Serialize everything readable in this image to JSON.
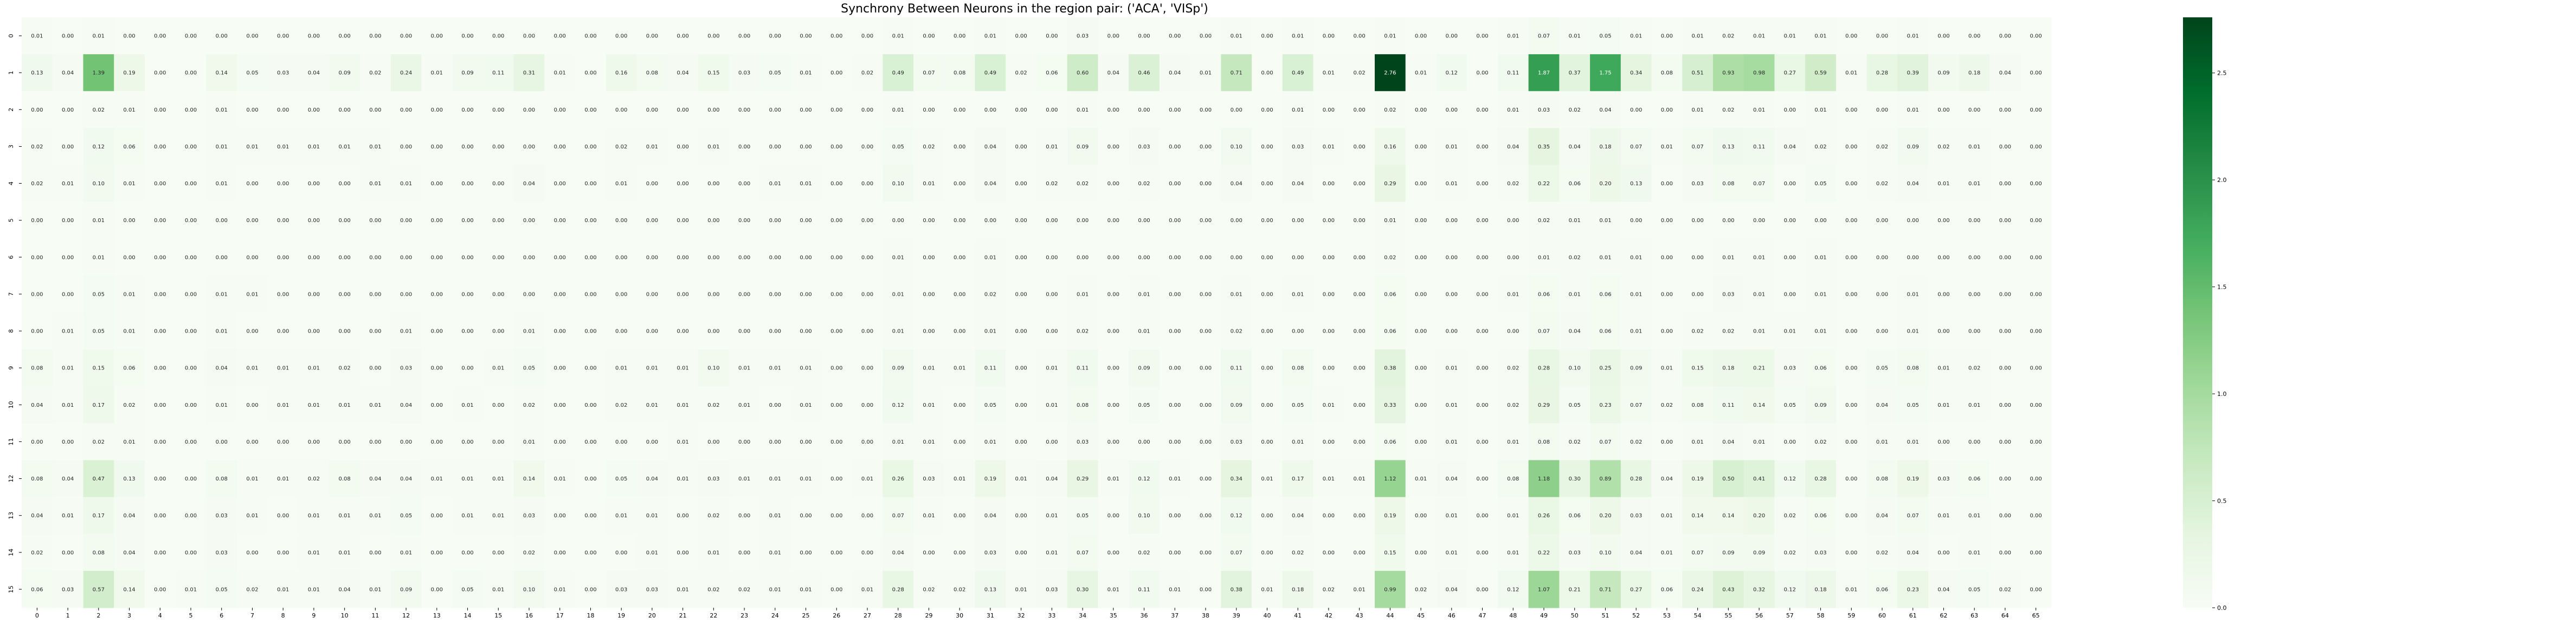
{
  "chart_data": {
    "type": "heatmap",
    "title": "Synchrony Between Neurons in the region pair: ('ACA', 'VISp')",
    "xlabel": "",
    "ylabel": "",
    "rows": [
      "0",
      "1",
      "2",
      "3",
      "4",
      "5",
      "6",
      "7",
      "8",
      "9",
      "10",
      "11",
      "12",
      "13",
      "14",
      "15"
    ],
    "columns": [
      "0",
      "1",
      "2",
      "3",
      "4",
      "5",
      "6",
      "7",
      "8",
      "9",
      "10",
      "11",
      "12",
      "13",
      "14",
      "15",
      "16",
      "17",
      "18",
      "19",
      "20",
      "21",
      "22",
      "23",
      "24",
      "25",
      "26",
      "27",
      "28",
      "29",
      "30",
      "31",
      "32",
      "33",
      "34",
      "35",
      "36",
      "37",
      "38",
      "39",
      "40",
      "41",
      "42",
      "43",
      "44",
      "45",
      "46",
      "47",
      "48",
      "49",
      "50",
      "51",
      "52",
      "53",
      "54",
      "55",
      "56",
      "57",
      "58",
      "59",
      "60",
      "61",
      "62",
      "63",
      "64",
      "65"
    ],
    "values": [
      [
        0.01,
        0.0,
        0.01,
        0.0,
        0.0,
        0.0,
        0.0,
        0.0,
        0.0,
        0.0,
        0.0,
        0.0,
        0.0,
        0.0,
        0.0,
        0.0,
        0.0,
        0.0,
        0.0,
        0.0,
        0.0,
        0.0,
        0.0,
        0.0,
        0.0,
        0.0,
        0.0,
        0.0,
        0.01,
        0.0,
        0.0,
        0.01,
        0.0,
        0.0,
        0.03,
        0.0,
        0.0,
        0.0,
        0.0,
        0.01,
        0.0,
        0.01,
        0.0,
        0.0,
        0.01,
        0.0,
        0.0,
        0.0,
        0.01,
        0.07,
        0.01,
        0.05,
        0.01,
        0.0,
        0.01,
        0.02,
        0.01,
        0.01,
        0.01,
        0.0,
        0.0,
        0.01,
        0.0,
        0.0,
        0.0,
        0.0
      ],
      [
        0.13,
        0.04,
        1.39,
        0.19,
        0.0,
        0.0,
        0.14,
        0.05,
        0.03,
        0.04,
        0.09,
        0.02,
        0.24,
        0.01,
        0.09,
        0.11,
        0.31,
        0.01,
        0.0,
        0.16,
        0.08,
        0.04,
        0.15,
        0.03,
        0.05,
        0.01,
        0.0,
        0.02,
        0.49,
        0.07,
        0.08,
        0.49,
        0.02,
        0.06,
        0.6,
        0.04,
        0.46,
        0.04,
        0.01,
        0.71,
        0.0,
        0.49,
        0.01,
        0.02,
        2.76,
        0.01,
        0.12,
        0.0,
        0.11,
        1.87,
        0.37,
        1.75,
        0.34,
        0.08,
        0.51,
        0.93,
        0.98,
        0.27,
        0.59,
        0.01,
        0.28,
        0.39,
        0.09,
        0.18,
        0.04,
        0.0
      ],
      [
        0.0,
        0.0,
        0.02,
        0.01,
        0.0,
        0.0,
        0.01,
        0.0,
        0.0,
        0.0,
        0.0,
        0.0,
        0.0,
        0.0,
        0.0,
        0.0,
        0.0,
        0.0,
        0.0,
        0.0,
        0.0,
        0.0,
        0.0,
        0.0,
        0.0,
        0.0,
        0.0,
        0.0,
        0.01,
        0.0,
        0.0,
        0.0,
        0.0,
        0.0,
        0.01,
        0.0,
        0.0,
        0.0,
        0.0,
        0.0,
        0.0,
        0.01,
        0.0,
        0.0,
        0.02,
        0.0,
        0.0,
        0.0,
        0.01,
        0.03,
        0.02,
        0.04,
        0.0,
        0.0,
        0.01,
        0.02,
        0.01,
        0.0,
        0.01,
        0.0,
        0.0,
        0.01,
        0.0,
        0.0,
        0.0,
        0.0
      ],
      [
        0.02,
        0.0,
        0.12,
        0.06,
        0.0,
        0.0,
        0.01,
        0.01,
        0.01,
        0.01,
        0.01,
        0.01,
        0.0,
        0.0,
        0.0,
        0.0,
        0.0,
        0.0,
        0.0,
        0.02,
        0.01,
        0.0,
        0.01,
        0.0,
        0.0,
        0.0,
        0.0,
        0.0,
        0.05,
        0.02,
        0.0,
        0.04,
        0.0,
        0.01,
        0.09,
        0.0,
        0.03,
        0.0,
        0.0,
        0.1,
        0.0,
        0.03,
        0.01,
        0.0,
        0.16,
        0.0,
        0.01,
        0.0,
        0.04,
        0.35,
        0.04,
        0.18,
        0.07,
        0.01,
        0.07,
        0.13,
        0.11,
        0.04,
        0.02,
        0.0,
        0.02,
        0.09,
        0.02,
        0.01,
        0.0,
        0.0
      ],
      [
        0.02,
        0.01,
        0.1,
        0.01,
        0.0,
        0.0,
        0.01,
        0.0,
        0.0,
        0.0,
        0.0,
        0.01,
        0.01,
        0.0,
        0.0,
        0.0,
        0.04,
        0.0,
        0.0,
        0.01,
        0.0,
        0.0,
        0.0,
        0.0,
        0.01,
        0.01,
        0.0,
        0.0,
        0.1,
        0.01,
        0.0,
        0.04,
        0.0,
        0.02,
        0.02,
        0.0,
        0.02,
        0.0,
        0.0,
        0.04,
        0.0,
        0.04,
        0.0,
        0.0,
        0.29,
        0.0,
        0.01,
        0.0,
        0.02,
        0.22,
        0.06,
        0.2,
        0.13,
        0.0,
        0.03,
        0.08,
        0.07,
        0.0,
        0.05,
        0.0,
        0.02,
        0.04,
        0.01,
        0.01,
        0.0,
        0.0
      ],
      [
        0.0,
        0.0,
        0.01,
        0.0,
        0.0,
        0.0,
        0.0,
        0.0,
        0.0,
        0.0,
        0.0,
        0.0,
        0.0,
        0.0,
        0.0,
        0.0,
        0.0,
        0.0,
        0.0,
        0.0,
        0.0,
        0.0,
        0.0,
        0.0,
        0.0,
        0.0,
        0.0,
        0.0,
        0.0,
        0.0,
        0.0,
        0.0,
        0.0,
        0.0,
        0.0,
        0.0,
        0.0,
        0.0,
        0.0,
        0.0,
        0.0,
        0.0,
        0.0,
        0.0,
        0.01,
        0.0,
        0.0,
        0.0,
        0.0,
        0.02,
        0.01,
        0.01,
        0.0,
        0.0,
        0.0,
        0.0,
        0.0,
        0.0,
        0.0,
        0.0,
        0.0,
        0.0,
        0.0,
        0.0,
        0.0,
        0.0
      ],
      [
        0.0,
        0.0,
        0.01,
        0.0,
        0.0,
        0.0,
        0.0,
        0.0,
        0.0,
        0.0,
        0.0,
        0.0,
        0.0,
        0.0,
        0.0,
        0.0,
        0.0,
        0.0,
        0.0,
        0.0,
        0.0,
        0.0,
        0.0,
        0.0,
        0.0,
        0.0,
        0.0,
        0.0,
        0.01,
        0.0,
        0.0,
        0.01,
        0.0,
        0.0,
        0.0,
        0.0,
        0.0,
        0.0,
        0.0,
        0.0,
        0.0,
        0.0,
        0.0,
        0.0,
        0.02,
        0.0,
        0.0,
        0.0,
        0.0,
        0.01,
        0.02,
        0.01,
        0.01,
        0.0,
        0.0,
        0.01,
        0.01,
        0.0,
        0.01,
        0.0,
        0.0,
        0.0,
        0.0,
        0.0,
        0.0,
        0.0
      ],
      [
        0.0,
        0.0,
        0.05,
        0.01,
        0.0,
        0.0,
        0.01,
        0.01,
        0.0,
        0.0,
        0.0,
        0.0,
        0.0,
        0.0,
        0.0,
        0.0,
        0.0,
        0.0,
        0.0,
        0.0,
        0.0,
        0.0,
        0.0,
        0.0,
        0.0,
        0.0,
        0.0,
        0.0,
        0.01,
        0.0,
        0.0,
        0.02,
        0.0,
        0.0,
        0.01,
        0.0,
        0.01,
        0.0,
        0.0,
        0.01,
        0.0,
        0.01,
        0.0,
        0.0,
        0.06,
        0.0,
        0.0,
        0.0,
        0.01,
        0.06,
        0.01,
        0.06,
        0.01,
        0.0,
        0.0,
        0.03,
        0.01,
        0.0,
        0.01,
        0.0,
        0.0,
        0.01,
        0.0,
        0.0,
        0.0,
        0.0
      ],
      [
        0.0,
        0.01,
        0.05,
        0.01,
        0.0,
        0.0,
        0.01,
        0.0,
        0.0,
        0.0,
        0.0,
        0.0,
        0.01,
        0.0,
        0.0,
        0.0,
        0.01,
        0.0,
        0.0,
        0.0,
        0.0,
        0.0,
        0.0,
        0.0,
        0.0,
        0.0,
        0.0,
        0.0,
        0.01,
        0.0,
        0.0,
        0.01,
        0.0,
        0.0,
        0.02,
        0.0,
        0.01,
        0.0,
        0.0,
        0.02,
        0.0,
        0.0,
        0.0,
        0.0,
        0.06,
        0.0,
        0.0,
        0.0,
        0.0,
        0.07,
        0.04,
        0.06,
        0.01,
        0.0,
        0.02,
        0.02,
        0.01,
        0.01,
        0.01,
        0.0,
        0.0,
        0.01,
        0.0,
        0.0,
        0.0,
        0.0
      ],
      [
        0.08,
        0.01,
        0.15,
        0.06,
        0.0,
        0.0,
        0.04,
        0.01,
        0.01,
        0.01,
        0.02,
        0.0,
        0.03,
        0.0,
        0.0,
        0.01,
        0.05,
        0.0,
        0.0,
        0.01,
        0.01,
        0.01,
        0.1,
        0.01,
        0.01,
        0.01,
        0.0,
        0.0,
        0.09,
        0.01,
        0.01,
        0.11,
        0.0,
        0.01,
        0.11,
        0.0,
        0.09,
        0.0,
        0.0,
        0.11,
        0.0,
        0.08,
        0.0,
        0.0,
        0.38,
        0.0,
        0.01,
        0.0,
        0.02,
        0.28,
        0.1,
        0.25,
        0.09,
        0.01,
        0.15,
        0.18,
        0.21,
        0.03,
        0.06,
        0.0,
        0.05,
        0.08,
        0.01,
        0.02,
        0.0,
        0.0
      ],
      [
        0.04,
        0.01,
        0.17,
        0.02,
        0.0,
        0.0,
        0.01,
        0.0,
        0.01,
        0.01,
        0.01,
        0.01,
        0.04,
        0.0,
        0.01,
        0.0,
        0.02,
        0.0,
        0.0,
        0.02,
        0.01,
        0.01,
        0.02,
        0.01,
        0.0,
        0.01,
        0.0,
        0.0,
        0.12,
        0.01,
        0.0,
        0.05,
        0.0,
        0.01,
        0.08,
        0.0,
        0.05,
        0.0,
        0.0,
        0.09,
        0.0,
        0.05,
        0.01,
        0.0,
        0.33,
        0.0,
        0.01,
        0.0,
        0.02,
        0.29,
        0.05,
        0.23,
        0.07,
        0.02,
        0.08,
        0.11,
        0.14,
        0.05,
        0.09,
        0.0,
        0.04,
        0.05,
        0.01,
        0.01,
        0.0,
        0.0
      ],
      [
        0.0,
        0.0,
        0.02,
        0.01,
        0.0,
        0.0,
        0.0,
        0.0,
        0.0,
        0.0,
        0.0,
        0.0,
        0.0,
        0.0,
        0.0,
        0.0,
        0.01,
        0.0,
        0.0,
        0.0,
        0.0,
        0.01,
        0.0,
        0.0,
        0.0,
        0.0,
        0.0,
        0.0,
        0.01,
        0.01,
        0.0,
        0.01,
        0.0,
        0.0,
        0.03,
        0.0,
        0.0,
        0.0,
        0.0,
        0.03,
        0.0,
        0.01,
        0.0,
        0.0,
        0.06,
        0.0,
        0.01,
        0.0,
        0.01,
        0.08,
        0.02,
        0.07,
        0.02,
        0.0,
        0.01,
        0.04,
        0.01,
        0.0,
        0.02,
        0.0,
        0.01,
        0.01,
        0.0,
        0.0,
        0.0,
        0.0
      ],
      [
        0.08,
        0.04,
        0.47,
        0.13,
        0.0,
        0.0,
        0.08,
        0.01,
        0.01,
        0.02,
        0.08,
        0.04,
        0.04,
        0.01,
        0.01,
        0.01,
        0.14,
        0.01,
        0.0,
        0.05,
        0.04,
        0.01,
        0.03,
        0.01,
        0.01,
        0.01,
        0.0,
        0.01,
        0.26,
        0.03,
        0.01,
        0.19,
        0.01,
        0.04,
        0.29,
        0.01,
        0.12,
        0.01,
        0.0,
        0.34,
        0.01,
        0.17,
        0.01,
        0.01,
        1.12,
        0.01,
        0.04,
        0.0,
        0.08,
        1.18,
        0.3,
        0.89,
        0.28,
        0.04,
        0.19,
        0.5,
        0.41,
        0.12,
        0.28,
        0.0,
        0.08,
        0.19,
        0.03,
        0.06,
        0.0,
        0.0
      ],
      [
        0.04,
        0.01,
        0.17,
        0.04,
        0.0,
        0.0,
        0.03,
        0.01,
        0.0,
        0.01,
        0.01,
        0.01,
        0.05,
        0.0,
        0.01,
        0.01,
        0.03,
        0.0,
        0.0,
        0.01,
        0.01,
        0.0,
        0.02,
        0.0,
        0.01,
        0.0,
        0.0,
        0.0,
        0.07,
        0.01,
        0.0,
        0.04,
        0.0,
        0.01,
        0.05,
        0.0,
        0.1,
        0.0,
        0.0,
        0.12,
        0.0,
        0.04,
        0.0,
        0.0,
        0.19,
        0.0,
        0.01,
        0.0,
        0.01,
        0.26,
        0.06,
        0.2,
        0.03,
        0.01,
        0.14,
        0.14,
        0.2,
        0.02,
        0.06,
        0.0,
        0.04,
        0.07,
        0.01,
        0.01,
        0.0,
        0.0
      ],
      [
        0.02,
        0.0,
        0.08,
        0.04,
        0.0,
        0.0,
        0.03,
        0.0,
        0.0,
        0.01,
        0.01,
        0.0,
        0.01,
        0.0,
        0.0,
        0.0,
        0.02,
        0.0,
        0.0,
        0.0,
        0.01,
        0.0,
        0.01,
        0.0,
        0.01,
        0.0,
        0.0,
        0.0,
        0.04,
        0.0,
        0.0,
        0.03,
        0.0,
        0.01,
        0.07,
        0.0,
        0.02,
        0.0,
        0.0,
        0.07,
        0.0,
        0.02,
        0.0,
        0.0,
        0.15,
        0.0,
        0.01,
        0.0,
        0.01,
        0.22,
        0.03,
        0.1,
        0.04,
        0.01,
        0.07,
        0.09,
        0.09,
        0.02,
        0.03,
        0.0,
        0.02,
        0.04,
        0.0,
        0.01,
        0.0,
        0.0
      ],
      [
        0.06,
        0.03,
        0.57,
        0.14,
        0.0,
        0.01,
        0.05,
        0.02,
        0.01,
        0.01,
        0.04,
        0.01,
        0.09,
        0.0,
        0.05,
        0.01,
        0.1,
        0.01,
        0.0,
        0.03,
        0.03,
        0.01,
        0.02,
        0.02,
        0.01,
        0.01,
        0.0,
        0.01,
        0.28,
        0.02,
        0.02,
        0.13,
        0.01,
        0.03,
        0.3,
        0.01,
        0.11,
        0.01,
        0.0,
        0.38,
        0.01,
        0.18,
        0.02,
        0.01,
        0.99,
        0.02,
        0.04,
        0.0,
        0.12,
        1.07,
        0.21,
        0.71,
        0.27,
        0.06,
        0.24,
        0.43,
        0.32,
        0.12,
        0.18,
        0.01,
        0.06,
        0.23,
        0.04,
        0.05,
        0.02,
        0.0
      ]
    ],
    "colorbar": {
      "colormap": "Greens",
      "vmin": 0.0,
      "vmax": 2.76,
      "ticks": [
        "0.0",
        "0.5",
        "1.0",
        "1.5",
        "2.0",
        "2.5"
      ],
      "tick_values": [
        0.0,
        0.5,
        1.0,
        1.5,
        2.0,
        2.5
      ]
    },
    "cell_format": "0.00",
    "grid": false,
    "legend": "colorbar-right"
  }
}
